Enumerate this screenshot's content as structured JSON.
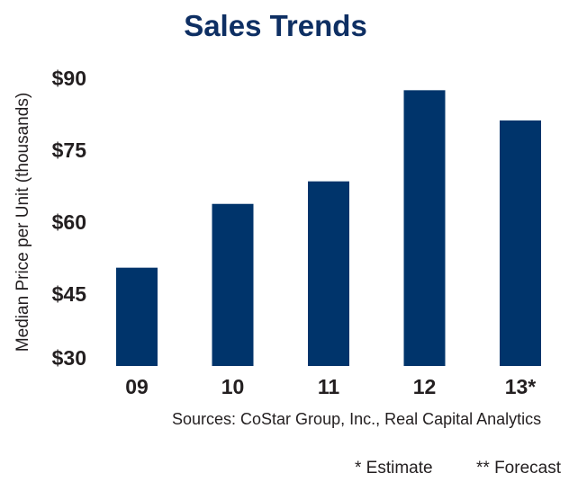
{
  "chart_data": {
    "type": "bar",
    "title": "Sales Trends",
    "xlabel": "",
    "ylabel": "Median Price per Unit (thousands)",
    "categories": [
      "09",
      "10",
      "11",
      "12",
      "13*"
    ],
    "values": [
      50.5,
      63.8,
      68.5,
      87.5,
      81.2
    ],
    "ylim": [
      30,
      90
    ],
    "yticks": [
      30,
      45,
      60,
      75,
      90
    ],
    "ytick_labels": [
      "$30",
      "$45",
      "$60",
      "$75",
      "$90"
    ],
    "grid": false,
    "bar_color": "#00346b"
  },
  "notes": {
    "sources": "Sources: CoStar Group, Inc., Real Capital Analytics",
    "estimate": "* Estimate",
    "forecast": "** Forecast"
  }
}
